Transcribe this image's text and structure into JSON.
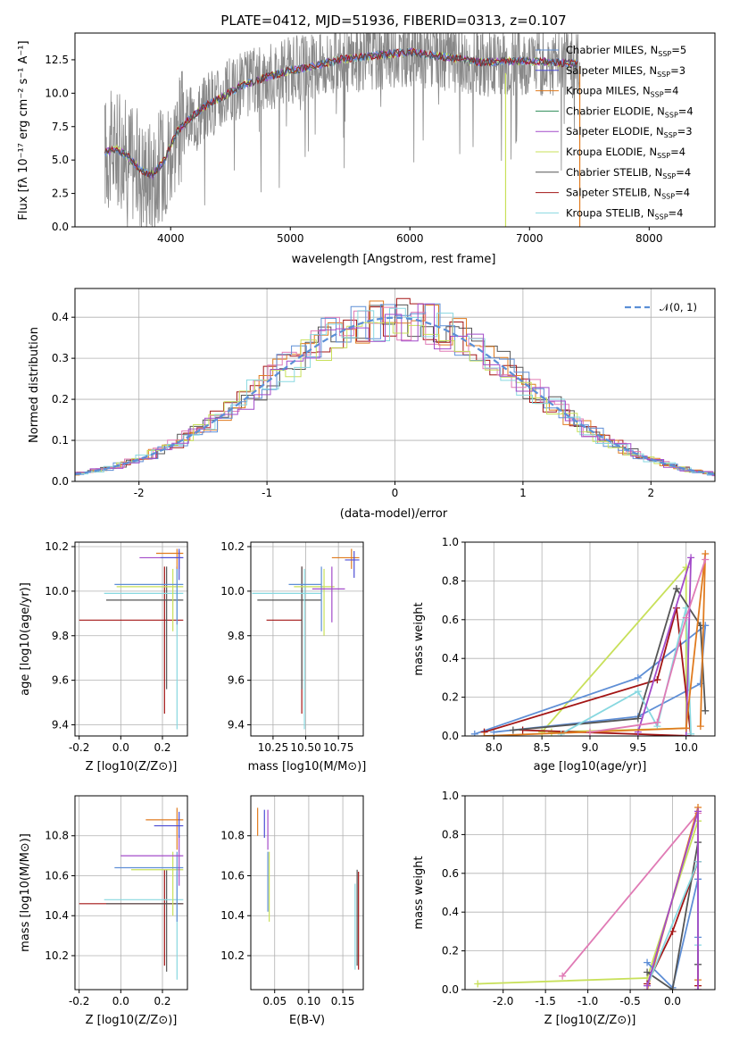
{
  "title": "PLATE=0412, MJD=51936, FIBERID=0313, z=0.107",
  "colors": {
    "Chabrier MILES": "#5f8fd6",
    "Salpeter MILES": "#4c4cd4",
    "Kroupa MILES": "#e07b1f",
    "Chabrier ELODIE": "#2e8b57",
    "Salpeter ELODIE": "#a34bc9",
    "Kroupa ELODIE": "#c8e05a",
    "Chabrier STELIB": "#555555",
    "Salpeter STELIB": "#a31515",
    "Kroupa STELIB": "#88d8e0",
    "extra": "#e07bb5",
    "normal": "#5b8fd6",
    "data": "#888888"
  },
  "legend_entries": [
    {
      "label": "Chabrier MILES, N",
      "sub": "SSP",
      "tail": "=5",
      "color": "Chabrier MILES"
    },
    {
      "label": "Salpeter MILES, N",
      "sub": "SSP",
      "tail": "=3",
      "color": "Salpeter MILES"
    },
    {
      "label": "Kroupa MILES, N",
      "sub": "SSP",
      "tail": "=4",
      "color": "Kroupa MILES"
    },
    {
      "label": "Chabrier ELODIE, N",
      "sub": "SSP",
      "tail": "=4",
      "color": "Chabrier ELODIE"
    },
    {
      "label": "Salpeter ELODIE, N",
      "sub": "SSP",
      "tail": "=3",
      "color": "Salpeter ELODIE"
    },
    {
      "label": "Kroupa ELODIE, N",
      "sub": "SSP",
      "tail": "=4",
      "color": "Kroupa ELODIE"
    },
    {
      "label": "Chabrier STELIB, N",
      "sub": "SSP",
      "tail": "=4",
      "color": "Chabrier STELIB"
    },
    {
      "label": "Salpeter STELIB, N",
      "sub": "SSP",
      "tail": "=4",
      "color": "Salpeter STELIB"
    },
    {
      "label": "Kroupa STELIB, N",
      "sub": "SSP",
      "tail": "=4",
      "color": "Kroupa STELIB"
    }
  ],
  "chart_data": [
    {
      "type": "line",
      "name": "spectrum",
      "title": "PLATE=0412, MJD=51936, FIBERID=0313, z=0.107",
      "xlabel": "wavelength [Angstrom, rest frame]",
      "ylabel": "Flux [fλ 10⁻¹⁷ erg cm⁻² s⁻¹ A⁻¹]",
      "xlim": [
        3200,
        8550
      ],
      "ylim": [
        0,
        14.5
      ],
      "xticks": [
        4000,
        5000,
        6000,
        7000,
        8000
      ],
      "yticks": [
        0.0,
        2.5,
        5.0,
        7.5,
        10.0,
        12.5
      ],
      "continuum": {
        "x": [
          3450,
          3550,
          3650,
          3750,
          3850,
          3950,
          4050,
          4150,
          4300,
          4450,
          4600,
          4800,
          5000,
          5200,
          5400,
          5600,
          5800,
          6000,
          6200,
          6400,
          6600,
          6800,
          7000,
          7200,
          7400
        ],
        "y": [
          5.6,
          5.8,
          5.2,
          4.2,
          3.9,
          5.0,
          7.1,
          8.0,
          9.1,
          9.8,
          10.6,
          11.2,
          11.7,
          12.0,
          12.5,
          12.7,
          12.9,
          13.1,
          12.8,
          12.6,
          12.3,
          12.4,
          12.4,
          12.3,
          12.2
        ]
      },
      "grid": false,
      "legend": "top-right"
    },
    {
      "type": "line",
      "name": "residuals",
      "xlabel": "(data-model)/error",
      "ylabel": "Normed distribution",
      "xlim": [
        -2.5,
        2.5
      ],
      "ylim": [
        0,
        0.47
      ],
      "xticks": [
        -2,
        -1,
        0,
        1,
        2
      ],
      "yticks": [
        0.0,
        0.1,
        0.2,
        0.3,
        0.4
      ],
      "legend_label": "𝒩(0, 1)",
      "grid": true,
      "legend": "top-right"
    },
    {
      "type": "scatter",
      "name": "age_vs_Z",
      "xlabel": "Z [log10(Z/Z⊙)]",
      "ylabel": "age  [log10(age/yr)]",
      "xlim": [
        -0.22,
        0.32
      ],
      "ylim": [
        9.35,
        10.22
      ],
      "xticks": [
        -0.2,
        0.0,
        0.2
      ],
      "yticks": [
        9.4,
        9.6,
        9.8,
        10.0,
        10.2
      ],
      "points": [
        {
          "x": 0.21,
          "xlo": -0.2,
          "xhi": 0.3,
          "y": 9.87,
          "ylo": 9.45,
          "yhi": 10.11,
          "c": "Salpeter STELIB"
        },
        {
          "x": 0.22,
          "xlo": -0.07,
          "xhi": 0.3,
          "y": 9.96,
          "ylo": 9.56,
          "yhi": 10.11,
          "c": "Chabrier STELIB"
        },
        {
          "x": 0.27,
          "xlo": -0.08,
          "xhi": 0.3,
          "y": 9.99,
          "ylo": 9.38,
          "yhi": 10.1,
          "c": "Kroupa STELIB"
        },
        {
          "x": 0.25,
          "xlo": -0.02,
          "xhi": 0.3,
          "y": 10.02,
          "ylo": 9.82,
          "yhi": 10.1,
          "c": "Kroupa ELODIE"
        },
        {
          "x": 0.27,
          "xlo": -0.03,
          "xhi": 0.3,
          "y": 10.03,
          "ylo": 9.85,
          "yhi": 10.11,
          "c": "Chabrier MILES"
        },
        {
          "x": 0.28,
          "xlo": 0.09,
          "xhi": 0.3,
          "y": 10.15,
          "ylo": 10.1,
          "yhi": 10.18,
          "c": "Salpeter ELODIE"
        },
        {
          "x": 0.27,
          "xlo": 0.17,
          "xhi": 0.3,
          "y": 10.17,
          "ylo": 10.1,
          "yhi": 10.19,
          "c": "Kroupa MILES"
        },
        {
          "x": 0.28,
          "xlo": 0.19,
          "xhi": 0.3,
          "y": 10.15,
          "ylo": 10.05,
          "yhi": 10.19,
          "c": "Salpeter MILES"
        }
      ]
    },
    {
      "type": "scatter",
      "name": "age_vs_mass",
      "xlabel": "mass [log10(M/M⊙)]",
      "ylabel": "",
      "xlim": [
        10.08,
        10.94
      ],
      "ylim": [
        9.35,
        10.22
      ],
      "xticks": [
        10.25,
        10.5,
        10.75
      ],
      "yticks": [
        9.4,
        9.6,
        9.8,
        10.0,
        10.2
      ],
      "points": [
        {
          "x": 10.47,
          "xlo": 10.2,
          "xhi": 10.47,
          "y": 9.87,
          "ylo": 9.45,
          "yhi": 10.11,
          "c": "Salpeter STELIB"
        },
        {
          "x": 10.47,
          "xlo": 10.13,
          "xhi": 10.62,
          "y": 9.96,
          "ylo": 9.56,
          "yhi": 10.11,
          "c": "Chabrier STELIB"
        },
        {
          "x": 10.49,
          "xlo": 10.09,
          "xhi": 10.62,
          "y": 9.99,
          "ylo": 9.38,
          "yhi": 10.1,
          "c": "Kroupa STELIB"
        },
        {
          "x": 10.64,
          "xlo": 10.41,
          "xhi": 10.72,
          "y": 10.02,
          "ylo": 9.8,
          "yhi": 10.1,
          "c": "Kroupa ELODIE"
        },
        {
          "x": 10.62,
          "xlo": 10.37,
          "xhi": 10.62,
          "y": 10.03,
          "ylo": 9.82,
          "yhi": 10.11,
          "c": "Chabrier MILES"
        },
        {
          "x": 10.7,
          "xlo": 10.55,
          "xhi": 10.8,
          "y": 10.01,
          "ylo": 9.86,
          "yhi": 10.11,
          "c": "Salpeter ELODIE"
        },
        {
          "x": 10.85,
          "xlo": 10.7,
          "xhi": 10.91,
          "y": 10.15,
          "ylo": 10.1,
          "yhi": 10.19,
          "c": "Kroupa MILES"
        },
        {
          "x": 10.87,
          "xlo": 10.8,
          "xhi": 10.91,
          "y": 10.14,
          "ylo": 10.06,
          "yhi": 10.18,
          "c": "Salpeter MILES"
        }
      ]
    },
    {
      "type": "line",
      "name": "mass_weight_vs_age",
      "xlabel": "age  [log10(age/yr)]",
      "ylabel": "mass weight",
      "xlim": [
        7.7,
        10.3
      ],
      "ylim": [
        0.0,
        1.0
      ],
      "xticks": [
        8.0,
        8.5,
        9.0,
        9.5,
        10.0
      ],
      "yticks": [
        0.0,
        0.2,
        0.4,
        0.6,
        0.8,
        1.0
      ],
      "grid": true,
      "series": [
        {
          "c": "Kroupa ELODIE",
          "x": [
            8.5,
            10.0,
            10.0,
            8.6
          ],
          "y": [
            0.02,
            0.87,
            0.04,
            0.02
          ]
        },
        {
          "c": "Chabrier MILES",
          "x": [
            7.8,
            9.5,
            10.2,
            10.15,
            9.5,
            8.0
          ],
          "y": [
            0.01,
            0.3,
            0.57,
            0.27,
            0.1,
            0.02
          ]
        },
        {
          "c": "Salpeter STELIB",
          "x": [
            7.9,
            9.7,
            9.9,
            10.05,
            8.3
          ],
          "y": [
            0.02,
            0.29,
            0.66,
            0.0,
            0.03
          ]
        },
        {
          "c": "Chabrier STELIB",
          "x": [
            8.2,
            9.5,
            9.9,
            10.15,
            10.2
          ],
          "y": [
            0.03,
            0.09,
            0.76,
            0.57,
            0.13
          ]
        },
        {
          "c": "Kroupa STELIB",
          "x": [
            8.7,
            9.5,
            9.7,
            10.0,
            10.05
          ],
          "y": [
            0.01,
            0.23,
            0.05,
            0.66,
            0.01
          ]
        },
        {
          "c": "Salpeter ELODIE",
          "x": [
            9.5,
            10.05,
            10.0
          ],
          "y": [
            0.02,
            0.92,
            0.0
          ]
        },
        {
          "c": "Kroupa MILES",
          "x": [
            7.9,
            10.0,
            10.2,
            10.15
          ],
          "y": [
            0.0,
            0.04,
            0.94,
            0.05
          ]
        },
        {
          "c": "extra",
          "x": [
            9.0,
            9.7,
            10.0,
            10.2
          ],
          "y": [
            0.02,
            0.07,
            0.61,
            0.91
          ]
        }
      ]
    },
    {
      "type": "scatter",
      "name": "mass_vs_Z",
      "xlabel": "Z [log10(Z/Z⊙)]",
      "ylabel": "mass [log10(M/M⊙)]",
      "xlim": [
        -0.22,
        0.32
      ],
      "ylim": [
        10.03,
        11.0
      ],
      "xticks": [
        -0.2,
        0.0,
        0.2
      ],
      "yticks": [
        10.2,
        10.4,
        10.6,
        10.8
      ],
      "points": [
        {
          "x": 0.21,
          "xlo": -0.2,
          "xhi": 0.3,
          "y": 10.46,
          "ylo": 10.15,
          "yhi": 10.63,
          "c": "Salpeter STELIB"
        },
        {
          "x": 0.22,
          "xlo": -0.07,
          "xhi": 0.3,
          "y": 10.46,
          "ylo": 10.12,
          "yhi": 10.63,
          "c": "Chabrier STELIB"
        },
        {
          "x": 0.27,
          "xlo": -0.08,
          "xhi": 0.3,
          "y": 10.48,
          "ylo": 10.08,
          "yhi": 10.62,
          "c": "Kroupa STELIB"
        },
        {
          "x": 0.25,
          "xlo": 0.05,
          "xhi": 0.3,
          "y": 10.63,
          "ylo": 10.4,
          "yhi": 10.72,
          "c": "Kroupa ELODIE"
        },
        {
          "x": 0.27,
          "xlo": -0.03,
          "xhi": 0.3,
          "y": 10.64,
          "ylo": 10.37,
          "yhi": 10.72,
          "c": "Chabrier MILES"
        },
        {
          "x": 0.28,
          "xlo": 0.0,
          "xhi": 0.3,
          "y": 10.7,
          "ylo": 10.55,
          "yhi": 10.8,
          "c": "Salpeter ELODIE"
        },
        {
          "x": 0.27,
          "xlo": 0.12,
          "xhi": 0.3,
          "y": 10.88,
          "ylo": 10.73,
          "yhi": 10.94,
          "c": "Kroupa MILES"
        },
        {
          "x": 0.28,
          "xlo": 0.16,
          "xhi": 0.3,
          "y": 10.85,
          "ylo": 10.79,
          "yhi": 10.92,
          "c": "Salpeter MILES"
        }
      ]
    },
    {
      "type": "scatter",
      "name": "mass_vs_EBV",
      "xlabel": "E(B-V)",
      "ylabel": "",
      "xlim": [
        0.015,
        0.18
      ],
      "ylim": [
        10.03,
        11.0
      ],
      "xticks": [
        0.05,
        0.1,
        0.15
      ],
      "yticks": [
        10.2,
        10.4,
        10.6,
        10.8
      ],
      "points": [
        {
          "x": 0.025,
          "y": 10.86,
          "ylo": 10.8,
          "yhi": 10.94,
          "c": "Kroupa MILES"
        },
        {
          "x": 0.035,
          "y": 10.87,
          "ylo": 10.79,
          "yhi": 10.93,
          "c": "Salpeter MILES"
        },
        {
          "x": 0.04,
          "y": 10.85,
          "ylo": 10.73,
          "yhi": 10.93,
          "c": "Salpeter ELODIE"
        },
        {
          "x": 0.042,
          "y": 10.6,
          "ylo": 10.37,
          "yhi": 10.72,
          "c": "Kroupa ELODIE"
        },
        {
          "x": 0.04,
          "y": 10.55,
          "ylo": 10.42,
          "yhi": 10.72,
          "c": "Chabrier MILES"
        },
        {
          "x": 0.168,
          "y": 10.5,
          "ylo": 10.13,
          "yhi": 10.56,
          "c": "Kroupa STELIB"
        },
        {
          "x": 0.171,
          "y": 10.5,
          "ylo": 10.15,
          "yhi": 10.63,
          "c": "Chabrier STELIB"
        },
        {
          "x": 0.173,
          "y": 10.5,
          "ylo": 10.13,
          "yhi": 10.62,
          "c": "Salpeter STELIB"
        }
      ]
    },
    {
      "type": "line",
      "name": "mass_weight_vs_Z",
      "xlabel": "Z [log10(Z/Z⊙)]",
      "ylabel": "mass weight",
      "xlim": [
        -2.45,
        0.5
      ],
      "ylim": [
        0.0,
        1.0
      ],
      "xticks": [
        -2.0,
        -1.5,
        -1.0,
        -0.5,
        0.0
      ],
      "yticks": [
        0.0,
        0.2,
        0.4,
        0.6,
        0.8,
        1.0
      ],
      "grid": true,
      "series": [
        {
          "c": "Kroupa ELODIE",
          "x": [
            -2.3,
            -0.3,
            0.3,
            0.3
          ],
          "y": [
            0.03,
            0.06,
            0.87,
            0.02
          ]
        },
        {
          "c": "extra",
          "x": [
            -1.3,
            0.3,
            0.3
          ],
          "y": [
            0.07,
            0.91,
            0.0
          ]
        },
        {
          "c": "Kroupa MILES",
          "x": [
            -0.3,
            0.3,
            0.3
          ],
          "y": [
            0.0,
            0.94,
            0.05
          ]
        },
        {
          "c": "Chabrier MILES",
          "x": [
            -0.3,
            0.0,
            0.3,
            0.3
          ],
          "y": [
            0.14,
            0.01,
            0.57,
            0.27
          ]
        },
        {
          "c": "Salpeter STELIB",
          "x": [
            -0.3,
            0.0,
            0.3,
            0.3
          ],
          "y": [
            0.03,
            0.3,
            0.66,
            0.02
          ]
        },
        {
          "c": "Chabrier STELIB",
          "x": [
            -0.3,
            0.0,
            0.3,
            0.3
          ],
          "y": [
            0.09,
            0.0,
            0.76,
            0.13
          ]
        },
        {
          "c": "Kroupa STELIB",
          "x": [
            -0.3,
            0.3,
            0.3
          ],
          "y": [
            0.02,
            0.66,
            0.23
          ]
        },
        {
          "c": "Salpeter ELODIE",
          "x": [
            -0.3,
            0.3,
            0.3
          ],
          "y": [
            0.02,
            0.92,
            0.0
          ]
        }
      ]
    }
  ]
}
